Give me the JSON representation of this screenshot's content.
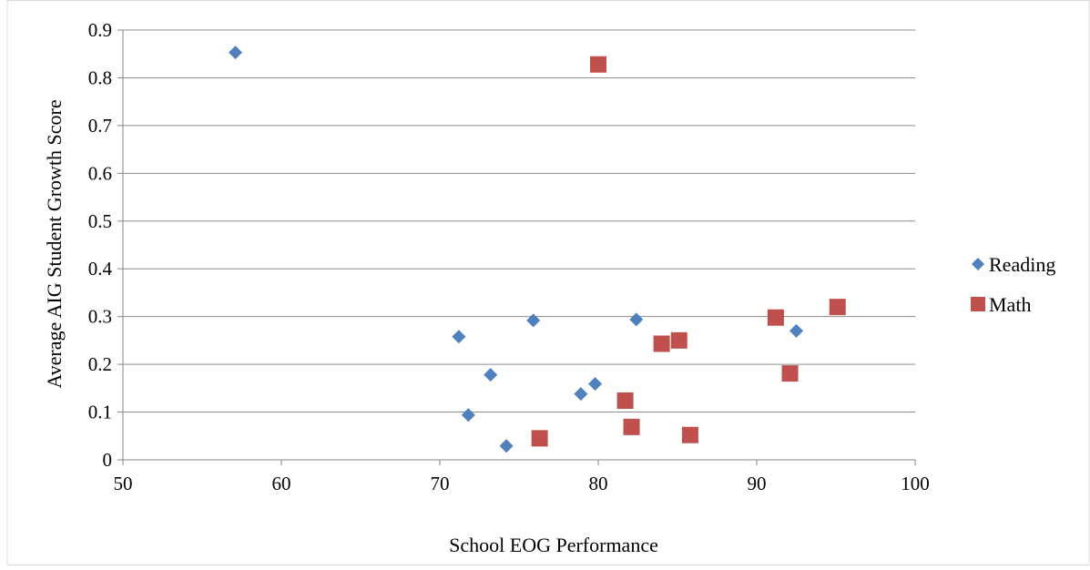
{
  "chart_data": {
    "type": "scatter",
    "title": "",
    "xlabel": "School EOG Performance",
    "ylabel": "Average AIG Student Growth Score",
    "xlim": [
      50,
      100
    ],
    "ylim": [
      0,
      0.9
    ],
    "x_ticks": [
      "50",
      "60",
      "70",
      "80",
      "90",
      "100"
    ],
    "y_ticks": [
      "0",
      "0.1",
      "0.2",
      "0.3",
      "0.4",
      "0.5",
      "0.6",
      "0.7",
      "0.8",
      "0.9"
    ],
    "grid": "horizontal",
    "legend_position": "right",
    "series": [
      {
        "name": "Reading",
        "marker": "diamond",
        "color": "#4F81BD",
        "points": [
          {
            "x": 57.1,
            "y": 0.853
          },
          {
            "x": 71.2,
            "y": 0.258
          },
          {
            "x": 71.8,
            "y": 0.094
          },
          {
            "x": 73.2,
            "y": 0.178
          },
          {
            "x": 74.2,
            "y": 0.029
          },
          {
            "x": 75.9,
            "y": 0.292
          },
          {
            "x": 78.9,
            "y": 0.138
          },
          {
            "x": 79.8,
            "y": 0.159
          },
          {
            "x": 82.4,
            "y": 0.294
          },
          {
            "x": 92.5,
            "y": 0.27
          }
        ]
      },
      {
        "name": "Math",
        "marker": "square",
        "color": "#C0504D",
        "points": [
          {
            "x": 80.0,
            "y": 0.828
          },
          {
            "x": 76.3,
            "y": 0.045
          },
          {
            "x": 81.7,
            "y": 0.124
          },
          {
            "x": 82.1,
            "y": 0.069
          },
          {
            "x": 84.0,
            "y": 0.243
          },
          {
            "x": 85.1,
            "y": 0.25
          },
          {
            "x": 85.8,
            "y": 0.052
          },
          {
            "x": 91.2,
            "y": 0.298
          },
          {
            "x": 92.1,
            "y": 0.181
          },
          {
            "x": 95.1,
            "y": 0.32
          }
        ]
      }
    ]
  }
}
